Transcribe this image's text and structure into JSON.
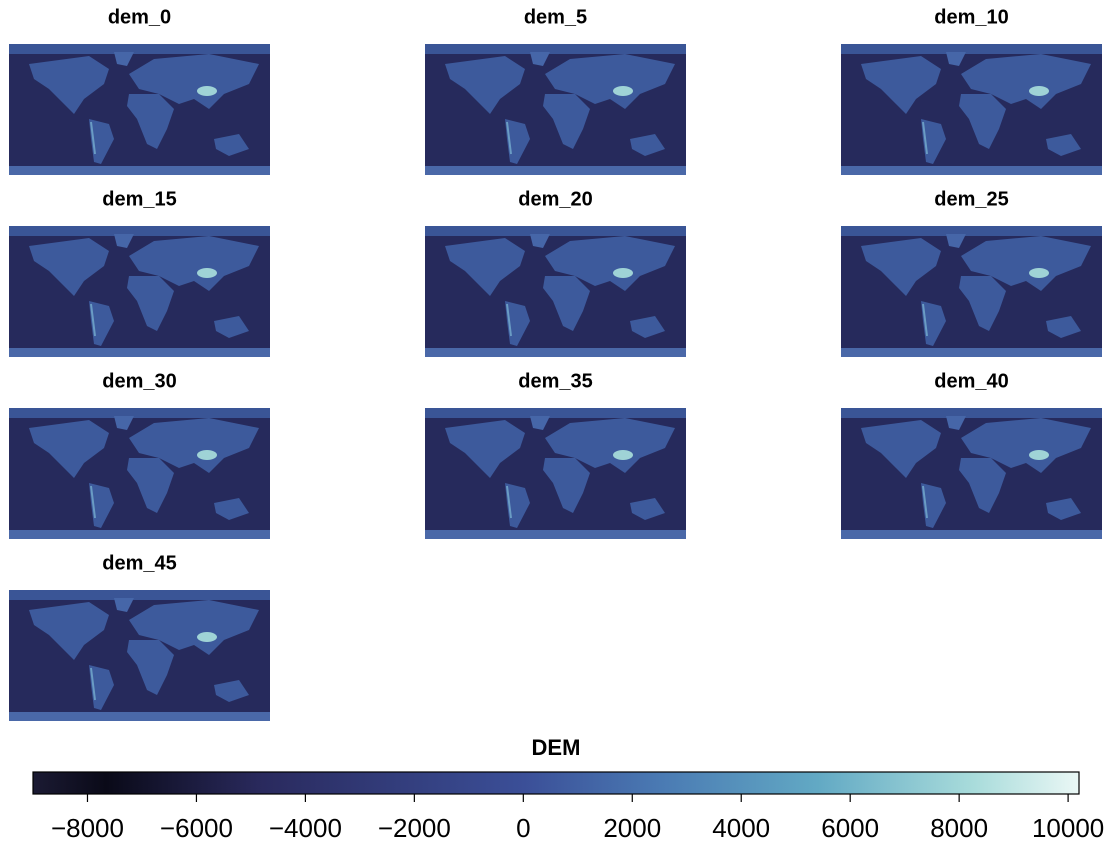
{
  "panels": [
    "dem_0",
    "dem_5",
    "dem_10",
    "dem_15",
    "dem_20",
    "dem_25",
    "dem_30",
    "dem_35",
    "dem_40",
    "dem_45"
  ],
  "colorbar": {
    "title": "DEM",
    "lim": [
      -9000,
      10200
    ],
    "ticks": [
      {
        "value": -8000,
        "label": "−8000"
      },
      {
        "value": -6000,
        "label": "−6000"
      },
      {
        "value": -4000,
        "label": "−4000"
      },
      {
        "value": -2000,
        "label": "−2000"
      },
      0,
      2000,
      4000,
      6000,
      8000,
      10000
    ]
  }
}
